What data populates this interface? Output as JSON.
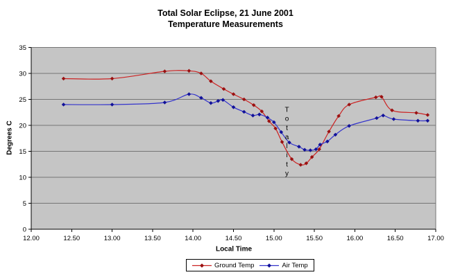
{
  "page": {
    "background": "#ffffff"
  },
  "chart_data": {
    "type": "line",
    "title": "Total Solar Eclipse, 21 June 2001",
    "subtitle": "Temperature Measurements",
    "xlabel": "Local Time",
    "ylabel": "Degrees C",
    "xlim": [
      12.0,
      17.0
    ],
    "ylim": [
      0,
      35
    ],
    "x_ticks": [
      "12.00",
      "12.50",
      "13.00",
      "13.50",
      "14.00",
      "14.50",
      "15.00",
      "15.50",
      "16.00",
      "16.50",
      "17.00"
    ],
    "y_ticks": [
      "0",
      "5",
      "10",
      "15",
      "20",
      "25",
      "30",
      "35"
    ],
    "grid": "horizontal",
    "plot_bg_color": "#c5c5c5",
    "grid_color": "#757575",
    "axis_color": "#000000",
    "legend_position": "bottom-center",
    "annotation": {
      "text": "Totality",
      "x": 15.16,
      "y_top": 23.0,
      "letter_step_y": 1.75,
      "orientation": "vertical-stacked"
    },
    "series": [
      {
        "name": "Ground Temp",
        "color": "#cc2222",
        "marker_color": "#991111",
        "marker": "diamond",
        "points": [
          [
            12.4,
            29.0
          ],
          [
            13.0,
            29.0
          ],
          [
            13.65,
            30.4
          ],
          [
            13.95,
            30.5
          ],
          [
            14.1,
            30.0
          ],
          [
            14.22,
            28.5
          ],
          [
            14.38,
            27.0
          ],
          [
            14.5,
            26.0
          ],
          [
            14.63,
            25.0
          ],
          [
            14.75,
            23.9
          ],
          [
            14.85,
            22.7
          ],
          [
            14.94,
            20.8
          ],
          [
            15.02,
            19.4
          ],
          [
            15.1,
            16.8
          ],
          [
            15.22,
            13.5
          ],
          [
            15.33,
            12.4
          ],
          [
            15.4,
            12.7
          ],
          [
            15.47,
            13.9
          ],
          [
            15.56,
            15.4
          ],
          [
            15.68,
            18.8
          ],
          [
            15.8,
            21.8
          ],
          [
            15.93,
            24.0
          ],
          [
            16.26,
            25.4
          ],
          [
            16.33,
            25.5
          ],
          [
            16.46,
            22.9
          ],
          [
            16.76,
            22.4
          ],
          [
            16.9,
            22.0
          ]
        ]
      },
      {
        "name": "Air Temp",
        "color": "#3333cc",
        "marker_color": "#111199",
        "marker": "diamond",
        "points": [
          [
            12.4,
            24.0
          ],
          [
            13.0,
            24.0
          ],
          [
            13.65,
            24.4
          ],
          [
            13.95,
            26.0
          ],
          [
            14.1,
            25.3
          ],
          [
            14.22,
            24.3
          ],
          [
            14.31,
            24.7
          ],
          [
            14.37,
            24.9
          ],
          [
            14.5,
            23.5
          ],
          [
            14.63,
            22.6
          ],
          [
            14.74,
            21.9
          ],
          [
            14.82,
            22.1
          ],
          [
            14.92,
            21.5
          ],
          [
            15.0,
            20.6
          ],
          [
            15.09,
            18.7
          ],
          [
            15.19,
            16.7
          ],
          [
            15.31,
            15.9
          ],
          [
            15.38,
            15.3
          ],
          [
            15.45,
            15.2
          ],
          [
            15.52,
            15.4
          ],
          [
            15.57,
            16.3
          ],
          [
            15.66,
            16.9
          ],
          [
            15.76,
            18.2
          ],
          [
            15.93,
            19.9
          ],
          [
            16.27,
            21.4
          ],
          [
            16.35,
            21.9
          ],
          [
            16.48,
            21.2
          ],
          [
            16.78,
            20.9
          ],
          [
            16.9,
            20.9
          ]
        ]
      }
    ]
  }
}
